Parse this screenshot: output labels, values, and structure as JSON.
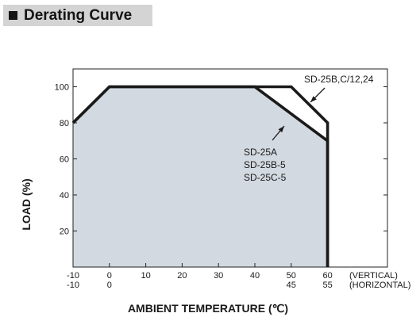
{
  "header": {
    "title": "Derating Curve"
  },
  "chart_data": {
    "type": "line",
    "title": "",
    "xlabel": "AMBIENT TEMPERATURE (℃)",
    "ylabel": "LOAD (%)",
    "xlim": [
      -10,
      60
    ],
    "ylim": [
      0,
      110
    ],
    "x_ticks": [
      -10,
      0,
      10,
      20,
      30,
      40,
      50,
      60
    ],
    "x_tick_labels_vertical": [
      "-10",
      "0",
      "10",
      "20",
      "30",
      "40",
      "50",
      "60"
    ],
    "x_tick_labels_horizontal": [
      "-10",
      "0",
      "",
      "",
      "",
      "",
      "45",
      "55"
    ],
    "y_ticks": [
      20,
      40,
      60,
      80,
      100
    ],
    "y_tick_labels": [
      "20",
      "40",
      "60",
      "80",
      "100"
    ],
    "axis_notes": {
      "vertical": "(VERTICAL)",
      "horizontal": "(HORIZONTAL)"
    },
    "grid": false,
    "series": [
      {
        "name": "SD-25B,C/12,24",
        "x": [
          -10,
          0,
          50,
          60,
          60
        ],
        "y": [
          80,
          100,
          100,
          80,
          0
        ]
      },
      {
        "name": "SD-25A\nSD-25B-5\nSD-25C-5",
        "x": [
          -10,
          0,
          40,
          60,
          60
        ],
        "y": [
          80,
          100,
          100,
          70,
          0
        ]
      }
    ],
    "annotations": [
      {
        "text": "SD-25B,C/12,24"
      },
      {
        "lines": [
          "SD-25A",
          "SD-25B-5",
          "SD-25C-5"
        ]
      }
    ],
    "colors": {
      "fill": "#d3d9e0",
      "line": "#1a1a1a",
      "axis": "#222222"
    }
  }
}
